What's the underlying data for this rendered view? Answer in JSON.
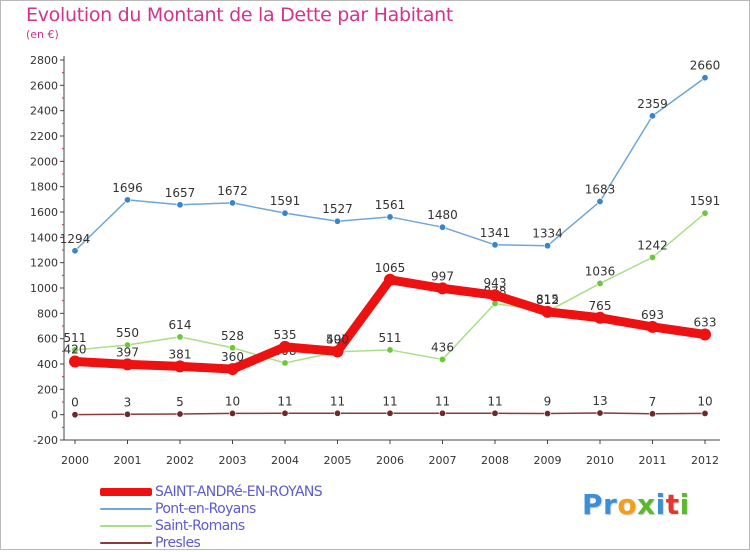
{
  "title": "Evolution du Montant de la Dette par Habitant",
  "subtitle": "(en €)",
  "logo": {
    "text": "Proxiti",
    "letters": [
      {
        "char": "P",
        "color": "#3b8fd9"
      },
      {
        "char": "r",
        "color": "#3b8fd9"
      },
      {
        "char": "o",
        "color": "#f0a01c"
      },
      {
        "char": "x",
        "color": "#5cb82c"
      },
      {
        "char": "i",
        "color": "#3b8fd9"
      },
      {
        "char": "t",
        "color": "#e0382c"
      },
      {
        "char": "i",
        "color": "#5cb82c"
      }
    ]
  },
  "chart_data": {
    "type": "line",
    "x": [
      2000,
      2001,
      2002,
      2003,
      2004,
      2005,
      2006,
      2007,
      2008,
      2009,
      2010,
      2011,
      2012
    ],
    "ylim": [
      -200,
      2800
    ],
    "yticks": [
      -200,
      0,
      200,
      400,
      600,
      800,
      1000,
      1200,
      1400,
      1600,
      1800,
      2000,
      2200,
      2400,
      2600,
      2800
    ],
    "grid": false,
    "legend": "bottom-left",
    "series": [
      {
        "name": "Pont-en-Royans",
        "color": "#6ea6d8",
        "marker": "#3a85c9",
        "values": [
          1294,
          1696,
          1657,
          1672,
          1591,
          1527,
          1561,
          1480,
          1341,
          1334,
          1683,
          2359,
          2660
        ]
      },
      {
        "name": "Saint-Romans",
        "color": "#a8df88",
        "marker": "#6cc83a",
        "values": [
          511,
          550,
          614,
          528,
          408,
          497,
          511,
          436,
          878,
          815,
          1036,
          1242,
          1591
        ]
      },
      {
        "name": "Presles",
        "color": "#8a3b3b",
        "marker": "#6e2a2a",
        "values": [
          0,
          3,
          5,
          10,
          11,
          11,
          11,
          11,
          11,
          9,
          13,
          7,
          10
        ]
      },
      {
        "name": "SAINT-ANDRé-EN-ROYANS",
        "color": "#ee1111",
        "marker": "#ee1111",
        "values": [
          420,
          397,
          381,
          360,
          535,
          500,
          1065,
          997,
          943,
          812,
          765,
          693,
          633
        ]
      }
    ],
    "legend_order": [
      "SAINT-ANDRé-EN-ROYANS",
      "Pont-en-Royans",
      "Saint-Romans",
      "Presles"
    ]
  }
}
